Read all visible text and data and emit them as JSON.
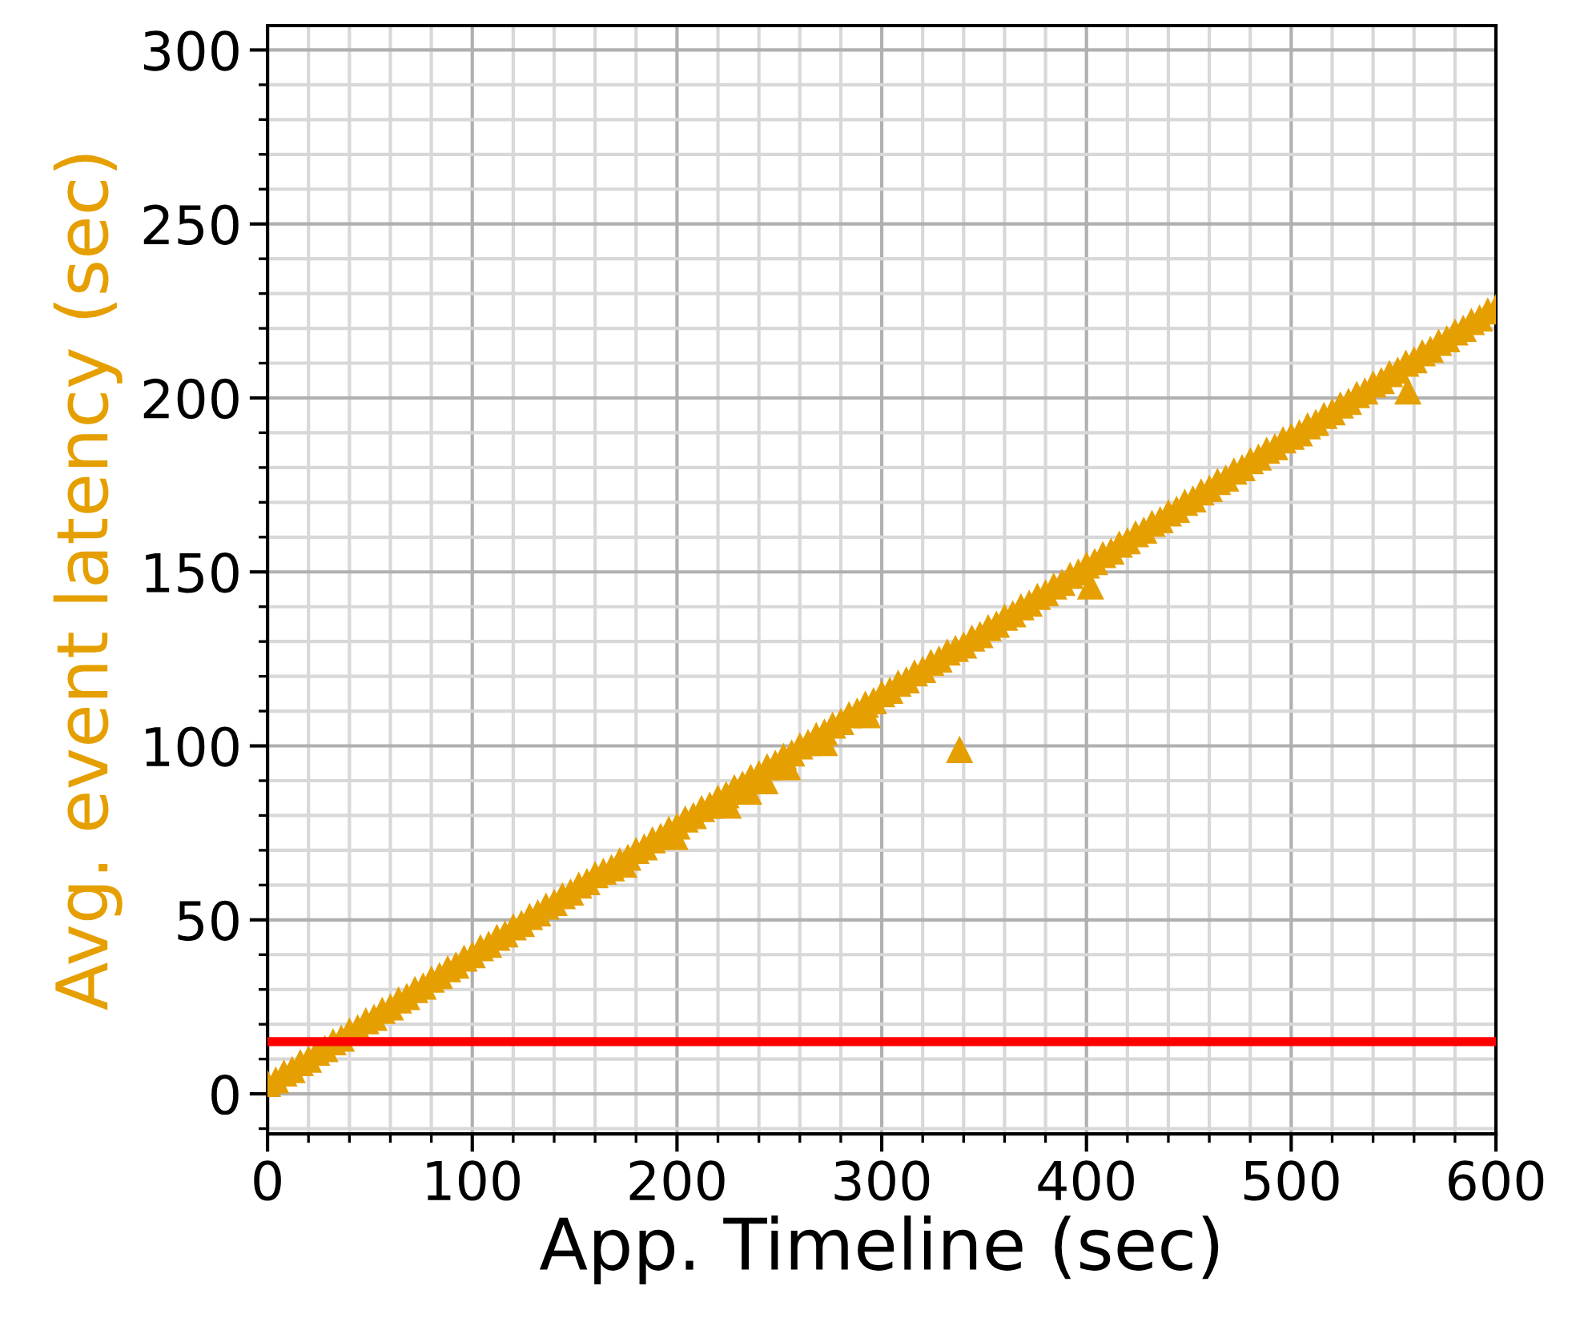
{
  "chart_data": {
    "type": "scatter",
    "xlabel": "App. Timeline (sec)",
    "ylabel": "Avg. event latency (sec)",
    "xlim": [
      0,
      600
    ],
    "ylim": [
      -11.5,
      307
    ],
    "xticks": [
      0,
      100,
      200,
      300,
      400,
      500,
      600
    ],
    "yticks": [
      0,
      50,
      100,
      150,
      200,
      250,
      300
    ],
    "grid": true,
    "marker": "triangle",
    "series": [
      {
        "color": "#e69f00",
        "x": [
          0,
          4,
          8,
          12,
          16,
          20,
          24,
          28,
          32,
          36,
          40,
          44,
          48,
          52,
          56,
          60,
          64,
          68,
          72,
          76,
          80,
          84,
          88,
          92,
          96,
          100,
          104,
          108,
          112,
          116,
          120,
          124,
          128,
          132,
          136,
          140,
          144,
          148,
          152,
          156,
          160,
          164,
          168,
          172,
          176,
          180,
          184,
          188,
          192,
          196,
          200,
          204,
          208,
          212,
          216,
          220,
          224,
          228,
          232,
          236,
          240,
          244,
          248,
          252,
          256,
          260,
          264,
          268,
          272,
          276,
          280,
          284,
          288,
          292,
          296,
          300,
          304,
          308,
          312,
          316,
          320,
          324,
          328,
          332,
          336,
          340,
          344,
          348,
          352,
          356,
          360,
          364,
          368,
          372,
          376,
          380,
          384,
          388,
          392,
          396,
          400,
          404,
          408,
          412,
          416,
          420,
          424,
          428,
          432,
          436,
          440,
          444,
          448,
          452,
          456,
          460,
          464,
          468,
          472,
          476,
          480,
          484,
          488,
          492,
          496,
          500,
          504,
          508,
          512,
          516,
          520,
          524,
          528,
          532,
          536,
          540,
          544,
          548,
          552,
          556,
          560,
          564,
          568,
          572,
          576,
          580,
          584,
          588,
          592,
          596,
          600,
          174,
          199,
          225,
          235,
          243,
          254,
          272,
          293,
          338,
          402,
          557
        ],
        "values": [
          3,
          4,
          6,
          7,
          9,
          10,
          12,
          13,
          15,
          16,
          18,
          19,
          21,
          22,
          24,
          25,
          27,
          28,
          30,
          31,
          33,
          34,
          36,
          37,
          39,
          40,
          42,
          43,
          45,
          46,
          48,
          49,
          51,
          52,
          54,
          55,
          57,
          58,
          60,
          61,
          63,
          64,
          65,
          67,
          68,
          70,
          71,
          73,
          74,
          76,
          77,
          79,
          80,
          82,
          83,
          85,
          86,
          88,
          89,
          91,
          92,
          94,
          95,
          97,
          98,
          100,
          101,
          103,
          104,
          106,
          107,
          109,
          110,
          112,
          113,
          115,
          116,
          118,
          119,
          121,
          122,
          124,
          125,
          127,
          128,
          129,
          131,
          132,
          134,
          135,
          137,
          138,
          140,
          141,
          143,
          144,
          146,
          147,
          149,
          150,
          152,
          153,
          155,
          156,
          158,
          159,
          161,
          162,
          164,
          165,
          167,
          168,
          170,
          171,
          173,
          174,
          176,
          177,
          179,
          180,
          182,
          183,
          185,
          186,
          188,
          189,
          190,
          192,
          193,
          195,
          196,
          198,
          199,
          201,
          202,
          204,
          205,
          207,
          208,
          210,
          211,
          213,
          214,
          216,
          217,
          219,
          220,
          222,
          223,
          225,
          226,
          66,
          74,
          83,
          87,
          90,
          94,
          101,
          109,
          99,
          146,
          202
        ]
      }
    ],
    "ref_lines": [
      {
        "axis": "y",
        "value": 15,
        "color": "#ff0000"
      }
    ]
  }
}
